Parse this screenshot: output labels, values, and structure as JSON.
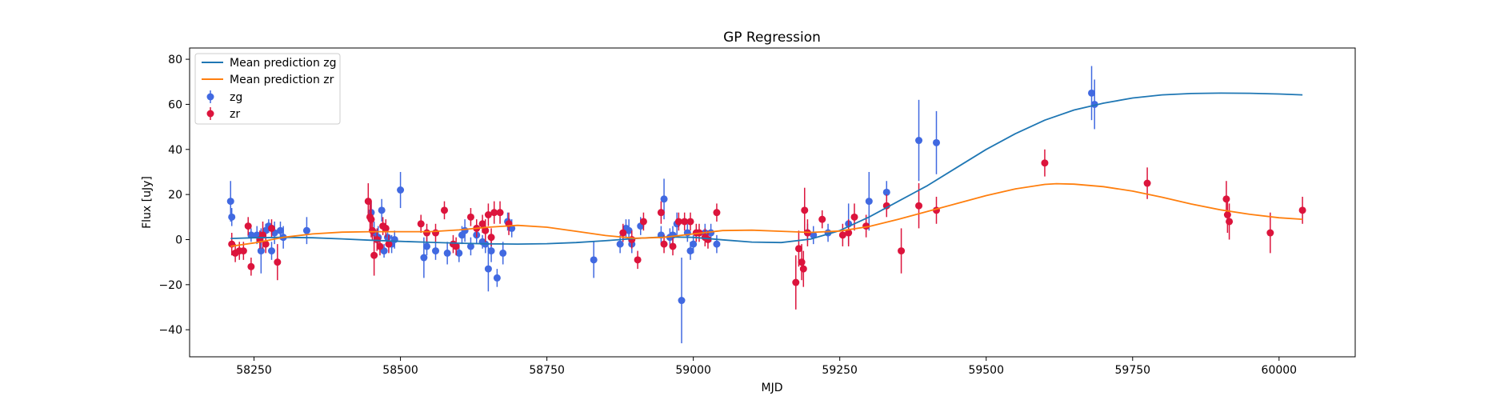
{
  "chart_data": {
    "type": "scatter",
    "title": "GP Regression",
    "xlabel": "MJD",
    "ylabel": "Flux [uJy]",
    "xlim": [
      58140,
      60130
    ],
    "ylim": [
      -52,
      85
    ],
    "xticks": [
      58250,
      58500,
      58750,
      59000,
      59250,
      59500,
      59750,
      60000
    ],
    "yticks": [
      -40,
      -20,
      0,
      20,
      40,
      60,
      80
    ],
    "grid": false,
    "legend_position": "top-left",
    "colors": {
      "zg_line": "#1f77b4",
      "zr_line": "#ff7f0e",
      "zg_points": "#4169e1",
      "zr_points": "#dc143c"
    },
    "legend": [
      {
        "label": "Mean prediction zg",
        "kind": "line",
        "color": "#1f77b4"
      },
      {
        "label": "Mean prediction zr",
        "kind": "line",
        "color": "#ff7f0e"
      },
      {
        "label": "zg",
        "kind": "errorbar",
        "color": "#4169e1"
      },
      {
        "label": "zr",
        "kind": "errorbar",
        "color": "#dc143c"
      }
    ],
    "series": [
      {
        "name": "Mean prediction zg",
        "kind": "line",
        "x": [
          58210,
          58250,
          58300,
          58350,
          58400,
          58450,
          58500,
          58550,
          58600,
          58650,
          58700,
          58750,
          58800,
          58850,
          58900,
          58950,
          59000,
          59050,
          59100,
          59150,
          59200,
          59250,
          59300,
          59350,
          59400,
          59450,
          59500,
          59550,
          59600,
          59650,
          59700,
          59750,
          59800,
          59850,
          59900,
          59950,
          60000,
          60040
        ],
        "y": [
          0.5,
          0.8,
          1.0,
          0.8,
          0.3,
          -0.3,
          -0.8,
          -1.2,
          -1.6,
          -1.9,
          -2.0,
          -1.8,
          -1.3,
          -0.5,
          0.5,
          1.2,
          1.0,
          -0.1,
          -1.1,
          -1.3,
          0.2,
          4.0,
          10.0,
          17.0,
          24.0,
          32.0,
          40.0,
          47.0,
          53.0,
          57.5,
          60.5,
          62.8,
          64.2,
          64.8,
          65.0,
          64.9,
          64.6,
          64.2
        ]
      },
      {
        "name": "Mean prediction zr",
        "kind": "line",
        "x": [
          58210,
          58250,
          58300,
          58350,
          58400,
          58450,
          58500,
          58550,
          58600,
          58650,
          58700,
          58750,
          58800,
          58850,
          58900,
          58950,
          59000,
          59050,
          59100,
          59150,
          59200,
          59250,
          59300,
          59350,
          59400,
          59450,
          59500,
          59550,
          59600,
          59620,
          59650,
          59700,
          59750,
          59800,
          59850,
          59900,
          59950,
          60000,
          60040
        ],
        "y": [
          -3.0,
          -1.5,
          1.0,
          2.5,
          3.3,
          3.5,
          3.5,
          3.5,
          4.3,
          5.5,
          6.3,
          5.5,
          3.7,
          1.8,
          0.6,
          1.0,
          2.5,
          4.0,
          4.2,
          3.7,
          3.2,
          3.8,
          5.8,
          9.0,
          12.5,
          16.0,
          19.5,
          22.5,
          24.5,
          24.8,
          24.6,
          23.5,
          21.5,
          18.8,
          15.8,
          13.2,
          11.2,
          9.7,
          9.0
        ]
      },
      {
        "name": "zg",
        "kind": "errorbar",
        "points": [
          [
            58210,
            17,
            9
          ],
          [
            58212,
            10,
            4
          ],
          [
            58245,
            2,
            3
          ],
          [
            58255,
            2,
            4
          ],
          [
            58262,
            -5,
            10
          ],
          [
            58270,
            4,
            3
          ],
          [
            58275,
            6,
            3
          ],
          [
            58280,
            -5,
            4
          ],
          [
            58285,
            3,
            5
          ],
          [
            58295,
            4,
            4
          ],
          [
            58300,
            1,
            5
          ],
          [
            58340,
            4,
            6
          ],
          [
            58450,
            12,
            5
          ],
          [
            58455,
            3,
            5
          ],
          [
            58462,
            1,
            5
          ],
          [
            58468,
            13,
            5
          ],
          [
            58472,
            -5,
            3
          ],
          [
            58478,
            1,
            4
          ],
          [
            58485,
            -2,
            4
          ],
          [
            58490,
            0,
            4
          ],
          [
            58500,
            22,
            8
          ],
          [
            58540,
            -8,
            9
          ],
          [
            58545,
            -3,
            4
          ],
          [
            58560,
            -5,
            4
          ],
          [
            58580,
            -6,
            5
          ],
          [
            58600,
            -6,
            4
          ],
          [
            58605,
            2,
            4
          ],
          [
            58610,
            4,
            5
          ],
          [
            58620,
            -3,
            4
          ],
          [
            58630,
            2,
            4
          ],
          [
            58640,
            -1,
            3
          ],
          [
            58645,
            -2,
            4
          ],
          [
            58650,
            -13,
            10
          ],
          [
            58655,
            -5,
            5
          ],
          [
            58665,
            -17,
            4
          ],
          [
            58675,
            -6,
            5
          ],
          [
            58683,
            8,
            4
          ],
          [
            58690,
            5,
            4
          ],
          [
            58830,
            -9,
            8
          ],
          [
            58875,
            -2,
            4
          ],
          [
            58885,
            5,
            4
          ],
          [
            58890,
            4,
            5
          ],
          [
            58895,
            -2,
            4
          ],
          [
            58910,
            6,
            4
          ],
          [
            58945,
            2,
            4
          ],
          [
            58950,
            18,
            9
          ],
          [
            58960,
            1,
            4
          ],
          [
            58965,
            2,
            4
          ],
          [
            58972,
            7,
            5
          ],
          [
            58980,
            -27,
            19
          ],
          [
            58990,
            3,
            4
          ],
          [
            58995,
            -5,
            4
          ],
          [
            59000,
            -2,
            4
          ],
          [
            59020,
            3,
            4
          ],
          [
            59030,
            3,
            4
          ],
          [
            59040,
            -2,
            4
          ],
          [
            59195,
            3,
            4
          ],
          [
            59205,
            2,
            4
          ],
          [
            59230,
            3,
            4
          ],
          [
            59265,
            7,
            9
          ],
          [
            59300,
            17,
            13
          ],
          [
            59330,
            21,
            5
          ],
          [
            59385,
            44,
            18
          ],
          [
            59415,
            43,
            14
          ],
          [
            59680,
            65,
            12
          ],
          [
            59685,
            60,
            11
          ]
        ]
      },
      {
        "name": "zr",
        "kind": "errorbar",
        "points": [
          [
            58212,
            -2,
            5
          ],
          [
            58218,
            -6,
            4
          ],
          [
            58225,
            -5,
            4
          ],
          [
            58232,
            -5,
            4
          ],
          [
            58240,
            6,
            4
          ],
          [
            58245,
            -12,
            4
          ],
          [
            58260,
            0,
            4
          ],
          [
            58265,
            2,
            6
          ],
          [
            58270,
            -2,
            4
          ],
          [
            58280,
            5,
            4
          ],
          [
            58290,
            -10,
            8
          ],
          [
            58445,
            17,
            8
          ],
          [
            58448,
            10,
            6
          ],
          [
            58450,
            9,
            8
          ],
          [
            58452,
            4,
            4
          ],
          [
            58455,
            -7,
            9
          ],
          [
            58460,
            0,
            5
          ],
          [
            58465,
            -3,
            4
          ],
          [
            58470,
            6,
            4
          ],
          [
            58475,
            5,
            4
          ],
          [
            58480,
            -2,
            4
          ],
          [
            58535,
            7,
            4
          ],
          [
            58545,
            3,
            4
          ],
          [
            58560,
            3,
            4
          ],
          [
            58575,
            13,
            4
          ],
          [
            58590,
            -2,
            4
          ],
          [
            58595,
            -3,
            4
          ],
          [
            58620,
            10,
            4
          ],
          [
            58630,
            5,
            4
          ],
          [
            58640,
            7,
            4
          ],
          [
            58645,
            4,
            5
          ],
          [
            58650,
            11,
            5
          ],
          [
            58655,
            1,
            4
          ],
          [
            58660,
            12,
            5
          ],
          [
            58670,
            12,
            5
          ],
          [
            58685,
            7,
            5
          ],
          [
            58880,
            3,
            4
          ],
          [
            58895,
            0,
            4
          ],
          [
            58905,
            -9,
            4
          ],
          [
            58915,
            8,
            4
          ],
          [
            58945,
            12,
            5
          ],
          [
            58950,
            -2,
            4
          ],
          [
            58965,
            -3,
            4
          ],
          [
            58975,
            8,
            4
          ],
          [
            58985,
            8,
            4
          ],
          [
            58995,
            8,
            4
          ],
          [
            59005,
            3,
            4
          ],
          [
            59010,
            3,
            4
          ],
          [
            59020,
            1,
            4
          ],
          [
            59025,
            0,
            4
          ],
          [
            59040,
            12,
            4
          ],
          [
            59175,
            -19,
            12
          ],
          [
            59180,
            -4,
            8
          ],
          [
            59185,
            -10,
            8
          ],
          [
            59188,
            -13,
            8
          ],
          [
            59190,
            13,
            10
          ],
          [
            59195,
            3,
            6
          ],
          [
            59220,
            9,
            4
          ],
          [
            59255,
            2,
            5
          ],
          [
            59265,
            3,
            6
          ],
          [
            59275,
            10,
            6
          ],
          [
            59295,
            6,
            5
          ],
          [
            59330,
            15,
            5
          ],
          [
            59355,
            -5,
            10
          ],
          [
            59385,
            15,
            10
          ],
          [
            59415,
            13,
            6
          ],
          [
            59600,
            34,
            6
          ],
          [
            59775,
            25,
            7
          ],
          [
            59910,
            18,
            8
          ],
          [
            59912,
            11,
            8
          ],
          [
            59915,
            8,
            8
          ],
          [
            59985,
            3,
            9
          ],
          [
            60040,
            13,
            6
          ]
        ]
      }
    ]
  }
}
